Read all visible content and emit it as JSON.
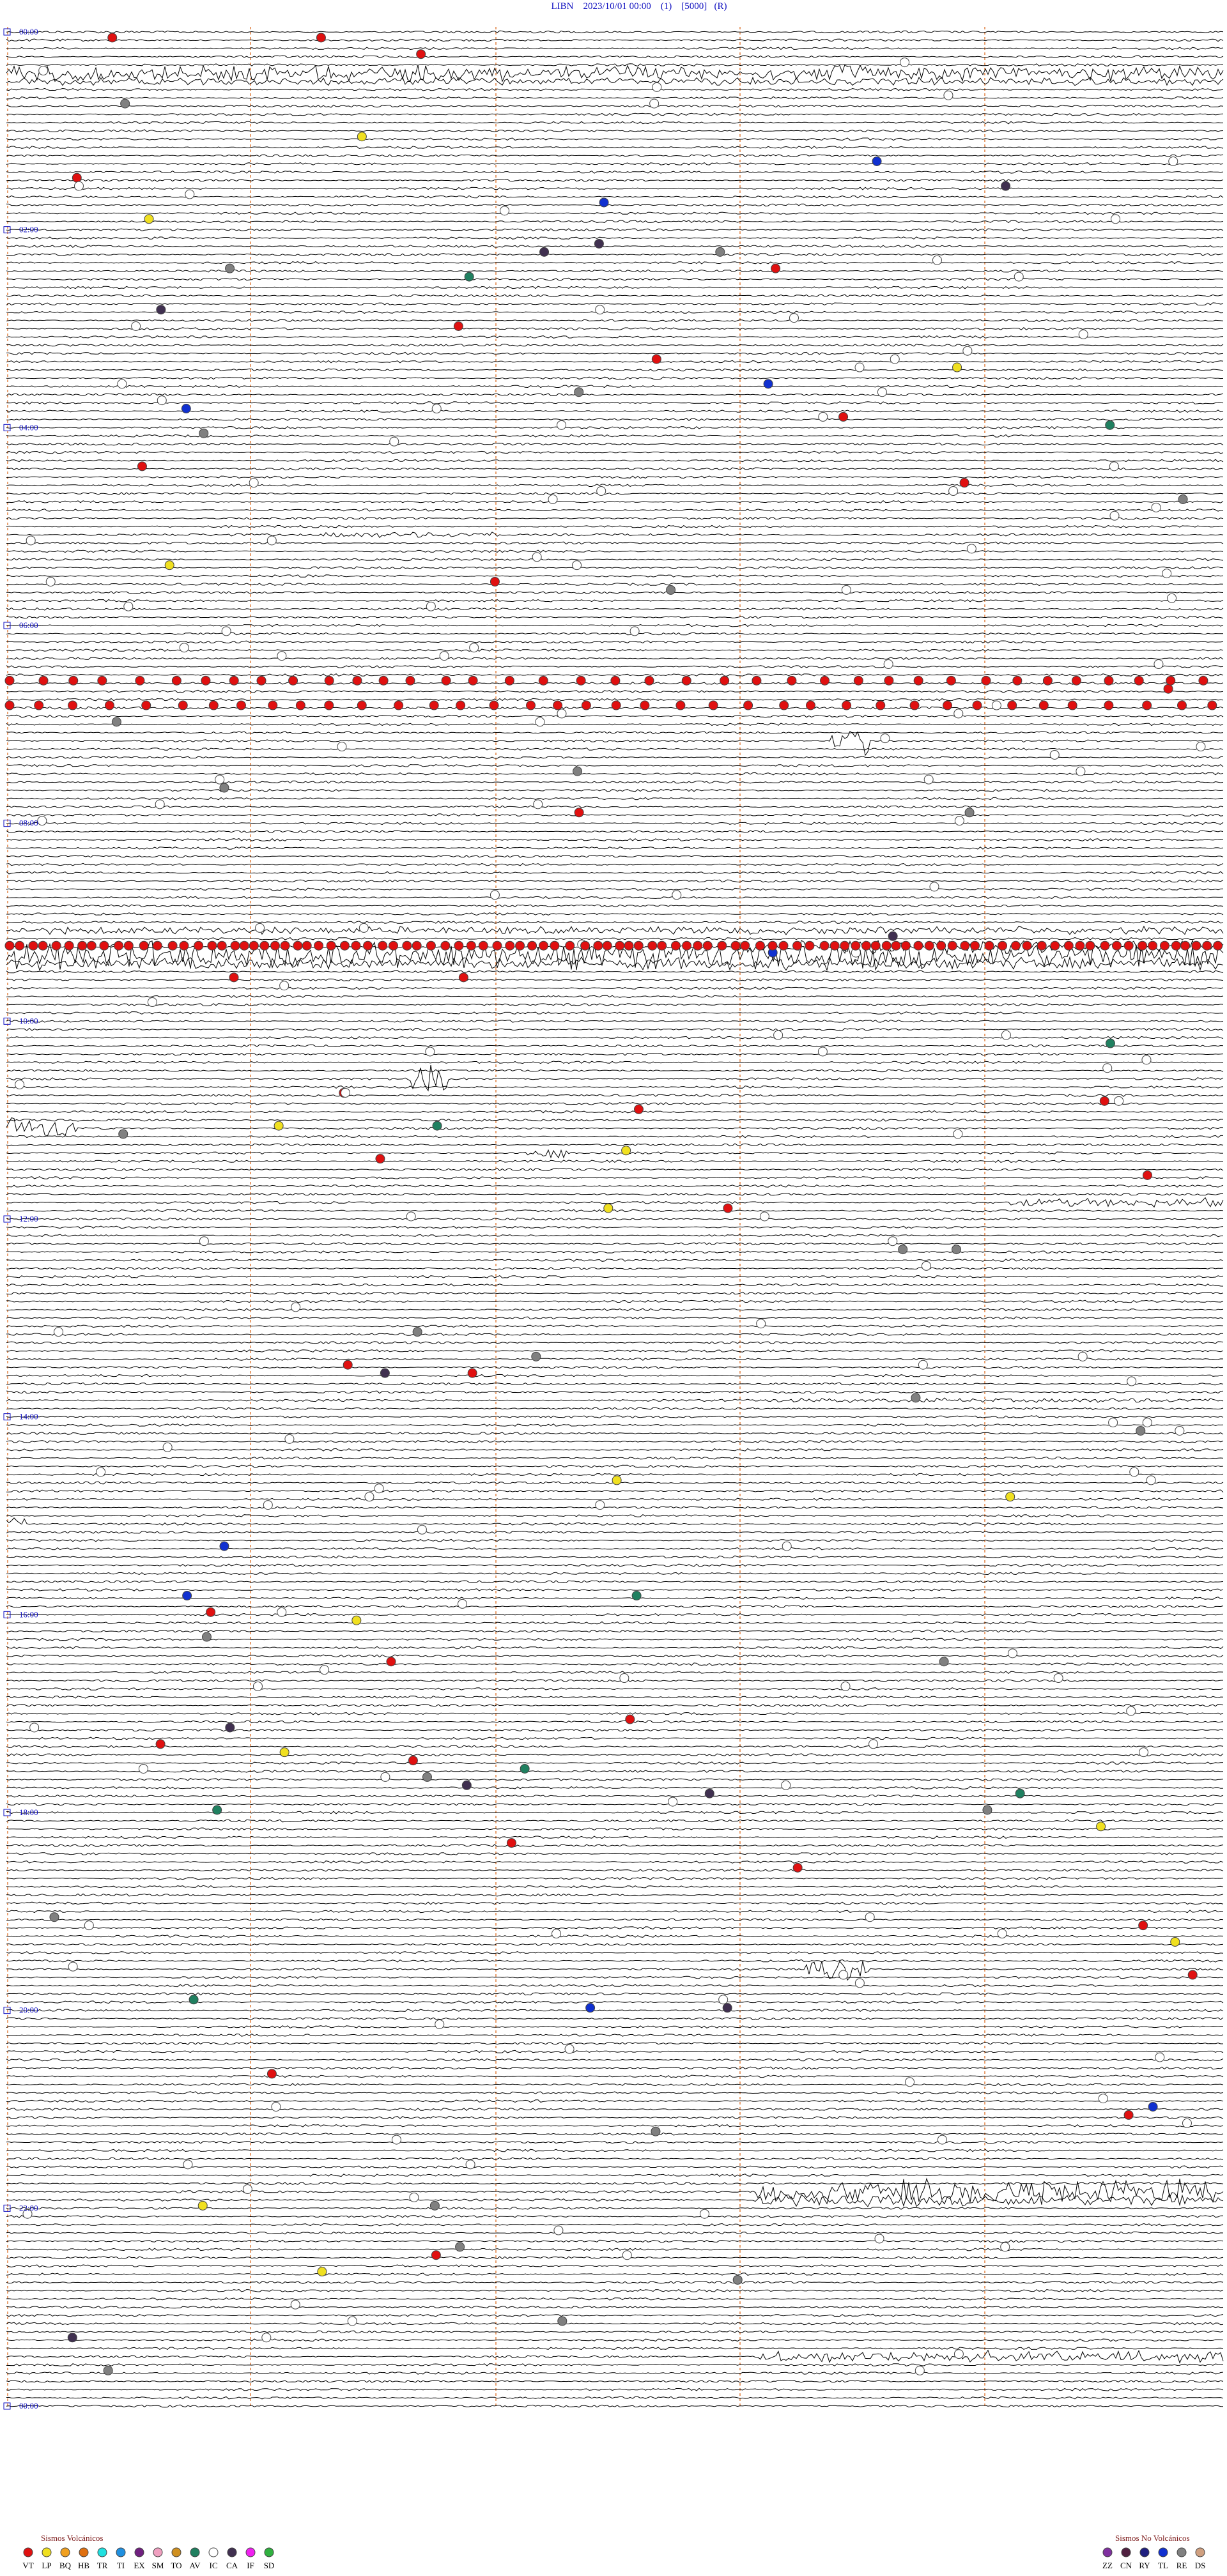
{
  "header": {
    "title": "LIBN    2023/10/01 00:00    (1)    [5000]   (R)"
  },
  "hour_labels": [
    "00:00",
    "02:00",
    "04:00",
    "06:00",
    "08:00",
    "10:00",
    "12:00",
    "14:00",
    "16:00",
    "18:00",
    "20:00",
    "22:00",
    "00:00"
  ],
  "legend_volcanic": {
    "title": "Sismos Volcánicos",
    "items": [
      {
        "code": "VT",
        "color": "#e01010"
      },
      {
        "code": "LP",
        "color": "#f0e020"
      },
      {
        "code": "BQ",
        "color": "#f0a020"
      },
      {
        "code": "HB",
        "color": "#e07010"
      },
      {
        "code": "TR",
        "color": "#20e0e0"
      },
      {
        "code": "TI",
        "color": "#2090e0"
      },
      {
        "code": "EX",
        "color": "#702080"
      },
      {
        "code": "SM",
        "color": "#f0a0c0"
      },
      {
        "code": "TO",
        "color": "#d09020"
      },
      {
        "code": "AV",
        "color": "#208060"
      },
      {
        "code": "IC",
        "color": "#ffffff"
      },
      {
        "code": "CA",
        "color": "#403050"
      },
      {
        "code": "IF",
        "color": "#f020f0"
      },
      {
        "code": "SD",
        "color": "#30b040"
      }
    ]
  },
  "legend_non_volcanic": {
    "title": "Sismos No Volcánicos",
    "items": [
      {
        "code": "ZZ",
        "color": "#8030a0"
      },
      {
        "code": "CN",
        "color": "#502040"
      },
      {
        "code": "RY",
        "color": "#202080"
      },
      {
        "code": "TL",
        "color": "#1030d0"
      },
      {
        "code": "RE",
        "color": "#808080"
      },
      {
        "code": "DS",
        "color": "#d0a080"
      }
    ]
  }
}
